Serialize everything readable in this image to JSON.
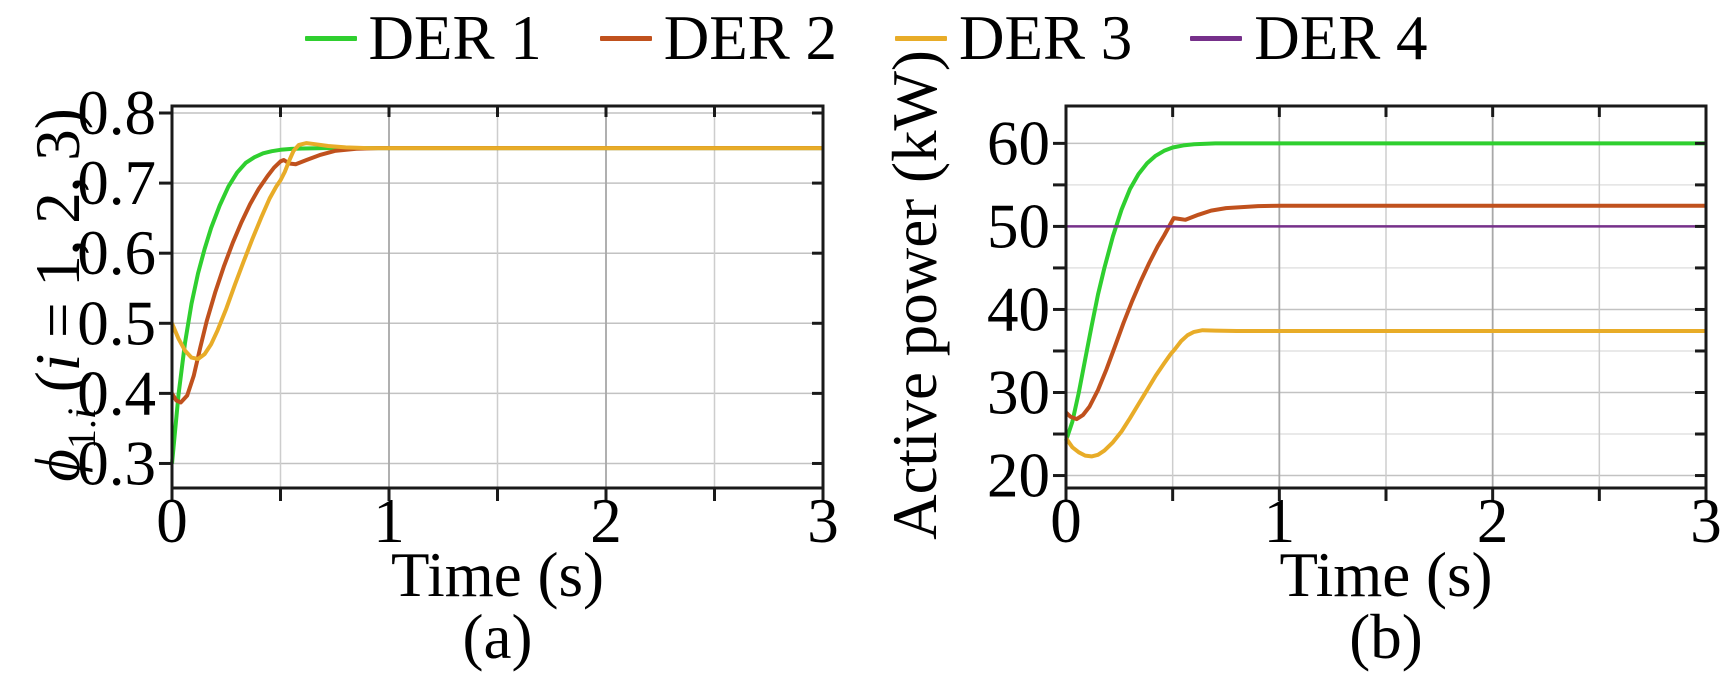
{
  "figure": {
    "legend": {
      "items": [
        {
          "label": "DER 1",
          "color": "#2FCF2F"
        },
        {
          "label": "DER 2",
          "color": "#C0511D"
        },
        {
          "label": "DER 3",
          "color": "#E8AC28"
        },
        {
          "label": "DER 4",
          "color": "#76308A"
        }
      ]
    },
    "style": {
      "axis_color": "#1a1a1a",
      "grid_major": "#c2c2c2",
      "grid_minor": "#e2e2e2",
      "xgrid_integer": "#a8a8a8",
      "xgrid_half": "#cdcdcd",
      "text_color": "#000000"
    }
  },
  "chart_data": [
    {
      "type": "line",
      "id": "a",
      "sublabel": "(a)",
      "xlabel": "Time (s)",
      "ylabel_parts": [
        {
          "t": "ϕ",
          "it": true
        },
        {
          "t": "1.",
          "sub": true
        },
        {
          "t": "i",
          "sub": true,
          "it": true
        },
        {
          "t": " (",
          "it": false
        },
        {
          "t": "i",
          "it": true
        },
        {
          "t": " = 1, 2, 3)",
          "it": false
        }
      ],
      "xlim": [
        0,
        3
      ],
      "ylim": [
        0.265,
        0.81
      ],
      "grid": true,
      "legend_position": "top-center-shared",
      "xticks": {
        "values": [
          0,
          0.5,
          1,
          1.5,
          2,
          2.5,
          3
        ],
        "labels": [
          "0",
          "",
          "1",
          "",
          "2",
          "",
          "3"
        ]
      },
      "yticks": {
        "values": [
          0.3,
          0.4,
          0.5,
          0.6,
          0.7,
          0.8
        ],
        "labels": [
          "0.3",
          "0.4",
          "0.5",
          "0.6",
          "0.7",
          "0.8"
        ]
      },
      "xgrid": {
        "integer": [
          1,
          2
        ],
        "half": [
          0.5,
          1.5,
          2.5
        ]
      },
      "ygrid": {
        "major": [
          0.3,
          0.4,
          0.5,
          0.6,
          0.7,
          0.8
        ],
        "minor": []
      },
      "series": [
        {
          "name": "DER 1",
          "color": "#2FCF2F",
          "width": 4,
          "points": [
            [
              0,
              0.3
            ],
            [
              0.03,
              0.398
            ],
            [
              0.06,
              0.472
            ],
            [
              0.09,
              0.528
            ],
            [
              0.12,
              0.571
            ],
            [
              0.15,
              0.606
            ],
            [
              0.18,
              0.636
            ],
            [
              0.22,
              0.668
            ],
            [
              0.26,
              0.695
            ],
            [
              0.3,
              0.715
            ],
            [
              0.34,
              0.729
            ],
            [
              0.38,
              0.737
            ],
            [
              0.42,
              0.7425
            ],
            [
              0.46,
              0.7455
            ],
            [
              0.5,
              0.7475
            ],
            [
              0.55,
              0.7488
            ],
            [
              0.6,
              0.7494
            ],
            [
              0.7,
              0.75
            ],
            [
              1.0,
              0.75
            ],
            [
              3,
              0.75
            ]
          ]
        },
        {
          "name": "DER 2",
          "color": "#C0511D",
          "width": 4,
          "points": [
            [
              0,
              0.4
            ],
            [
              0.02,
              0.39
            ],
            [
              0.04,
              0.387
            ],
            [
              0.07,
              0.397
            ],
            [
              0.1,
              0.425
            ],
            [
              0.13,
              0.465
            ],
            [
              0.16,
              0.503
            ],
            [
              0.2,
              0.545
            ],
            [
              0.24,
              0.582
            ],
            [
              0.28,
              0.615
            ],
            [
              0.32,
              0.644
            ],
            [
              0.36,
              0.67
            ],
            [
              0.4,
              0.692
            ],
            [
              0.44,
              0.71
            ],
            [
              0.47,
              0.722
            ],
            [
              0.5,
              0.731
            ],
            [
              0.515,
              0.733
            ],
            [
              0.54,
              0.728
            ],
            [
              0.57,
              0.727
            ],
            [
              0.62,
              0.733
            ],
            [
              0.68,
              0.74
            ],
            [
              0.75,
              0.746
            ],
            [
              0.85,
              0.749
            ],
            [
              0.95,
              0.75
            ],
            [
              3,
              0.75
            ]
          ]
        },
        {
          "name": "DER 3",
          "color": "#E8AC28",
          "width": 4,
          "points": [
            [
              0,
              0.5
            ],
            [
              0.03,
              0.478
            ],
            [
              0.06,
              0.461
            ],
            [
              0.09,
              0.451
            ],
            [
              0.12,
              0.449
            ],
            [
              0.15,
              0.456
            ],
            [
              0.18,
              0.47
            ],
            [
              0.21,
              0.49
            ],
            [
              0.25,
              0.521
            ],
            [
              0.29,
              0.555
            ],
            [
              0.33,
              0.588
            ],
            [
              0.37,
              0.62
            ],
            [
              0.41,
              0.65
            ],
            [
              0.45,
              0.678
            ],
            [
              0.48,
              0.695
            ],
            [
              0.5,
              0.704
            ],
            [
              0.52,
              0.716
            ],
            [
              0.54,
              0.732
            ],
            [
              0.56,
              0.746
            ],
            [
              0.585,
              0.7545
            ],
            [
              0.62,
              0.757
            ],
            [
              0.66,
              0.7555
            ],
            [
              0.72,
              0.753
            ],
            [
              0.8,
              0.751
            ],
            [
              0.9,
              0.75
            ],
            [
              3,
              0.75
            ]
          ]
        }
      ]
    },
    {
      "type": "line",
      "id": "b",
      "sublabel": "(b)",
      "xlabel": "Time (s)",
      "ylabel_parts": [
        {
          "t": "Active power (kW)",
          "it": false
        }
      ],
      "xlim": [
        0,
        3
      ],
      "ylim": [
        18.5,
        64.5
      ],
      "grid": true,
      "legend_position": "top-center-shared",
      "xticks": {
        "values": [
          0,
          0.5,
          1,
          1.5,
          2,
          2.5,
          3
        ],
        "labels": [
          "0",
          "",
          "1",
          "",
          "2",
          "",
          "3"
        ]
      },
      "yticks": {
        "values": [
          20,
          25,
          30,
          35,
          40,
          45,
          50,
          55,
          60
        ],
        "labels": [
          "20",
          "",
          "30",
          "",
          "40",
          "",
          "50",
          "",
          "60"
        ]
      },
      "xgrid": {
        "integer": [
          1,
          2
        ],
        "half": [
          0.5,
          1.5,
          2.5
        ]
      },
      "ygrid": {
        "major": [
          20,
          30,
          40,
          50,
          60
        ],
        "minor": [
          25,
          35,
          45,
          55
        ]
      },
      "series": [
        {
          "name": "DER 1",
          "color": "#2FCF2F",
          "width": 4,
          "points": [
            [
              0,
              24.2
            ],
            [
              0.03,
              26.5
            ],
            [
              0.06,
              30.0
            ],
            [
              0.09,
              34.0
            ],
            [
              0.12,
              38.0
            ],
            [
              0.15,
              41.8
            ],
            [
              0.18,
              45.0
            ],
            [
              0.22,
              48.8
            ],
            [
              0.26,
              52.0
            ],
            [
              0.3,
              54.5
            ],
            [
              0.34,
              56.3
            ],
            [
              0.38,
              57.6
            ],
            [
              0.42,
              58.5
            ],
            [
              0.46,
              59.1
            ],
            [
              0.5,
              59.5
            ],
            [
              0.55,
              59.75
            ],
            [
              0.6,
              59.9
            ],
            [
              0.7,
              60.0
            ],
            [
              1.0,
              60.0
            ],
            [
              3,
              60.0
            ]
          ]
        },
        {
          "name": "DER 2",
          "color": "#C0511D",
          "width": 4,
          "points": [
            [
              0,
              27.6
            ],
            [
              0.02,
              27.1
            ],
            [
              0.05,
              26.8
            ],
            [
              0.08,
              27.3
            ],
            [
              0.11,
              28.3
            ],
            [
              0.15,
              30.3
            ],
            [
              0.19,
              32.8
            ],
            [
              0.23,
              35.6
            ],
            [
              0.27,
              38.4
            ],
            [
              0.31,
              41.0
            ],
            [
              0.35,
              43.4
            ],
            [
              0.39,
              45.6
            ],
            [
              0.43,
              47.6
            ],
            [
              0.46,
              48.9
            ],
            [
              0.49,
              50.3
            ],
            [
              0.505,
              51.0
            ],
            [
              0.53,
              50.9
            ],
            [
              0.56,
              50.8
            ],
            [
              0.62,
              51.4
            ],
            [
              0.68,
              51.9
            ],
            [
              0.75,
              52.2
            ],
            [
              0.9,
              52.45
            ],
            [
              1.0,
              52.5
            ],
            [
              3,
              52.5
            ]
          ]
        },
        {
          "name": "DER 3",
          "color": "#E8AC28",
          "width": 4,
          "points": [
            [
              0,
              24.5
            ],
            [
              0.03,
              23.4
            ],
            [
              0.06,
              22.8
            ],
            [
              0.09,
              22.4
            ],
            [
              0.12,
              22.3
            ],
            [
              0.15,
              22.5
            ],
            [
              0.18,
              23.0
            ],
            [
              0.22,
              24.0
            ],
            [
              0.26,
              25.3
            ],
            [
              0.3,
              26.9
            ],
            [
              0.34,
              28.6
            ],
            [
              0.38,
              30.3
            ],
            [
              0.42,
              32.0
            ],
            [
              0.46,
              33.5
            ],
            [
              0.49,
              34.6
            ],
            [
              0.51,
              35.2
            ],
            [
              0.54,
              36.2
            ],
            [
              0.57,
              36.9
            ],
            [
              0.6,
              37.3
            ],
            [
              0.64,
              37.5
            ],
            [
              0.7,
              37.45
            ],
            [
              0.8,
              37.4
            ],
            [
              3,
              37.4
            ]
          ]
        },
        {
          "name": "DER 4",
          "color": "#76308A",
          "width": 2.5,
          "points": [
            [
              0,
              50
            ],
            [
              3,
              50
            ]
          ]
        }
      ]
    }
  ]
}
